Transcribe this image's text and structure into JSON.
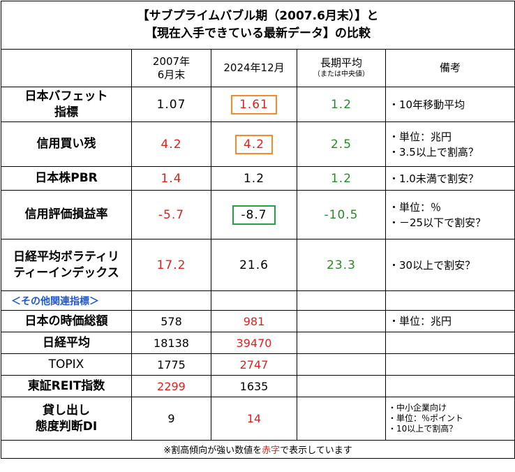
{
  "title": {
    "line1": "【サブプライムバブル期（2007.6月末）】と",
    "line2": "【現在入手できている最新データ】の比較"
  },
  "headers": {
    "col1_line1": "2007年",
    "col1_line2": "6月末",
    "col2": "2024年12月",
    "col3": "長期平均",
    "col3_sub": "（または中央値）",
    "col4": "備考"
  },
  "rows": [
    {
      "label": [
        "日本バフェット",
        "指標"
      ],
      "v2007": "1.07",
      "v2024": "1.61",
      "avg": "1.2",
      "notes": [
        "・10年移動平均"
      ]
    },
    {
      "label": [
        "信用買い残"
      ],
      "v2007": "4.2",
      "v2024": "4.2",
      "avg": "2.5",
      "notes": [
        "・単位：兆円",
        "・3.5以上で割高？"
      ]
    },
    {
      "label": [
        "日本株PBR"
      ],
      "v2007": "1.4",
      "v2024": "1.2",
      "avg": "1.2",
      "notes": [
        "・1.0未満で割安？"
      ]
    },
    {
      "label": [
        "信用評価損益率"
      ],
      "v2007": "-5.7",
      "v2024": "-8.7",
      "avg": "-10.5",
      "notes": [
        "・単位：％",
        "・－25以下で割安？"
      ]
    },
    {
      "label": [
        "日経平均ボラティリ",
        "ティーインデックス"
      ],
      "v2007": "17.2",
      "v2024": "21.6",
      "avg": "23.3",
      "notes": [
        "・30以上で割安？"
      ]
    }
  ],
  "section_label": "＜その他関連指標＞",
  "other_rows": [
    {
      "label": "日本の時価総額",
      "v2007": "578",
      "v2024": "981",
      "notes": [
        "・単位：兆円"
      ]
    },
    {
      "label": "日経平均",
      "v2007": "18138",
      "v2024": "39470",
      "notes": []
    },
    {
      "label": "TOPIX",
      "v2007": "1775",
      "v2024": "2747",
      "notes": []
    },
    {
      "label": "東証REIT指数",
      "v2007": "2299",
      "v2024": "1635",
      "notes": []
    },
    {
      "label": [
        "貸し出し",
        "態度判断DI"
      ],
      "v2007": "9",
      "v2024": "14",
      "notes": [
        "・中小企業向け",
        "・単位：％ポイント",
        "・10以上で割高？"
      ]
    }
  ],
  "footer": {
    "before": "※割高傾向が強い数値を",
    "highlight": "赤字",
    "after": "で表示しています"
  },
  "colors": {
    "red": "#e0201b",
    "green": "#268a26",
    "orange_box": "#f58a2b",
    "green_box": "#21a245",
    "section_blue": "#1d56d6"
  }
}
